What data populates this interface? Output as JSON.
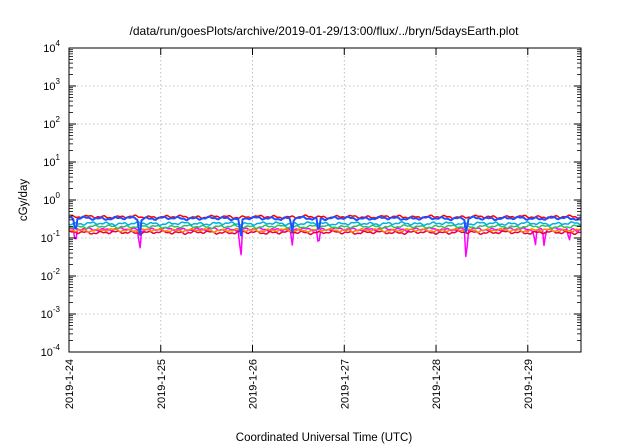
{
  "chart_data": {
    "type": "line",
    "title": "/data/run/goesPlots/archive/2019-01-29/13:00/flux/../bryn/5daysEarth.plot",
    "xlabel": "Coordinated Universal Time (UTC)",
    "ylabel": "cGy/day",
    "yscale": "log",
    "ylim": [
      0.0001,
      10000
    ],
    "y_ticks": [
      {
        "base": "10",
        "exp": "4",
        "value": 10000
      },
      {
        "base": "10",
        "exp": "3",
        "value": 1000
      },
      {
        "base": "10",
        "exp": "2",
        "value": 100
      },
      {
        "base": "10",
        "exp": "1",
        "value": 10
      },
      {
        "base": "10",
        "exp": "0",
        "value": 1
      },
      {
        "base": "10",
        "exp": "-1",
        "value": 0.1
      },
      {
        "base": "10",
        "exp": "-2",
        "value": 0.01
      },
      {
        "base": "10",
        "exp": "-3",
        "value": 0.001
      },
      {
        "base": "10",
        "exp": "-4",
        "value": 0.0001
      }
    ],
    "xlim": [
      0,
      5.58
    ],
    "x_units": "days since 2019-01-24 00:00 UTC",
    "x_ticks": [
      {
        "label": "2019-1-24",
        "value": 0
      },
      {
        "label": "2019-1-25",
        "value": 1
      },
      {
        "label": "2019-1-26",
        "value": 2
      },
      {
        "label": "2019-1-27",
        "value": 3
      },
      {
        "label": "2019-1-28",
        "value": 4
      },
      {
        "label": "2019-1-29",
        "value": 5
      }
    ],
    "grid": true,
    "series": [
      {
        "name": "series-magenta",
        "color": "#ff00ff",
        "base": 0.17,
        "dips": [
          [
            0.07,
            0.07
          ],
          [
            0.77,
            0.045
          ],
          [
            1.87,
            0.025
          ],
          [
            2.43,
            0.06
          ],
          [
            2.72,
            0.06
          ],
          [
            4.33,
            0.022
          ],
          [
            5.08,
            0.06
          ],
          [
            5.18,
            0.06
          ],
          [
            5.45,
            0.075
          ]
        ]
      },
      {
        "name": "series-red-low",
        "color": "#e8003c",
        "base": 0.14,
        "dips": []
      },
      {
        "name": "series-orange",
        "color": "#ff8000",
        "base": 0.16,
        "dips": []
      },
      {
        "name": "series-green",
        "color": "#30c060",
        "base": 0.2,
        "dips": []
      },
      {
        "name": "series-cyan",
        "color": "#00b0e0",
        "base": 0.24,
        "dips": []
      },
      {
        "name": "series-red-high",
        "color": "#ff0000",
        "base": 0.36,
        "dips": []
      },
      {
        "name": "series-blue",
        "color": "#1e50ff",
        "base": 0.33,
        "dips": [
          [
            0.07,
            0.13
          ],
          [
            0.77,
            0.1
          ],
          [
            1.87,
            0.09
          ],
          [
            2.43,
            0.13
          ],
          [
            2.72,
            0.13
          ],
          [
            4.33,
            0.12
          ]
        ]
      }
    ]
  }
}
